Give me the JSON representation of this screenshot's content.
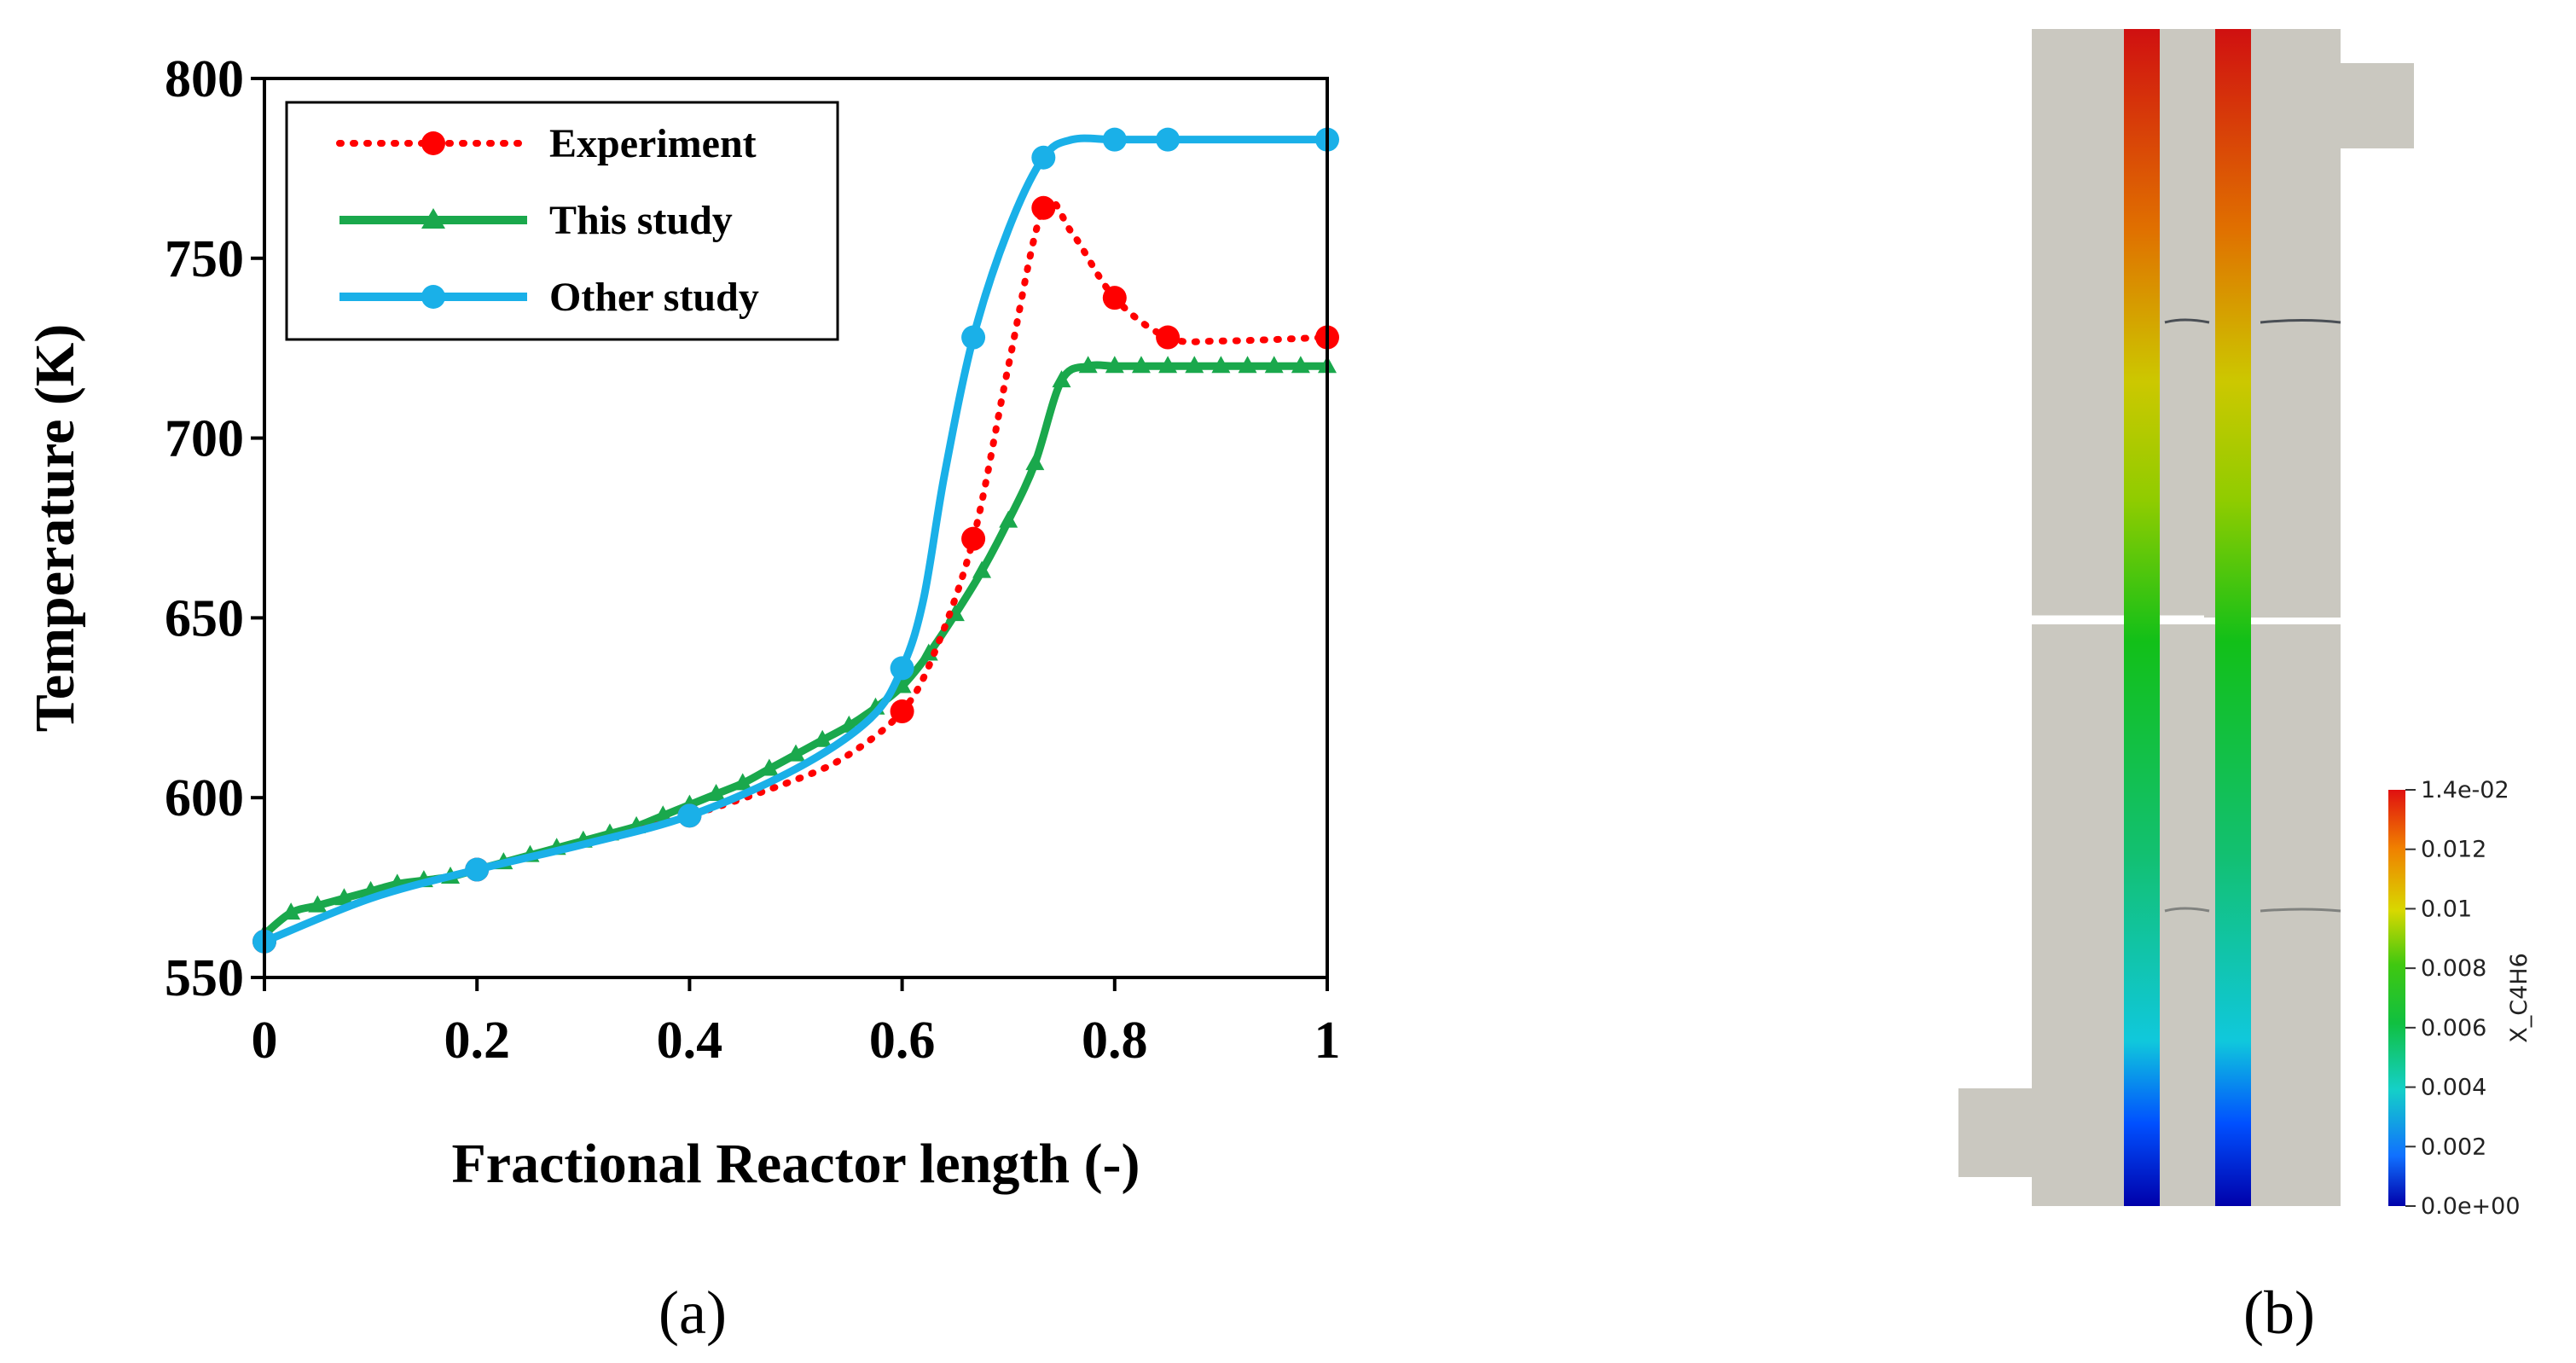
{
  "chart_data": [
    {
      "type": "line",
      "panel_label": "(a)",
      "xlabel": "Fractional Reactor length (-)",
      "ylabel": "Temperature (K)",
      "xlim": [
        0,
        1
      ],
      "ylim": [
        550,
        800
      ],
      "xticks": [
        "0",
        "0.2",
        "0.4",
        "0.6",
        "0.8",
        "1"
      ],
      "xtick_values": [
        0,
        0.2,
        0.4,
        0.6,
        0.8,
        1
      ],
      "yticks": [
        "550",
        "600",
        "650",
        "700",
        "750",
        "800"
      ],
      "ytick_values": [
        550,
        600,
        650,
        700,
        750,
        800
      ],
      "legend_position": "top-left",
      "series": [
        {
          "name": "Experiment",
          "color": "#ff0000",
          "style": "dotted",
          "marker": "circle",
          "x": [
            0,
            0.2,
            0.4,
            0.6,
            0.667,
            0.733,
            0.8,
            0.85,
            1.0
          ],
          "y": [
            560,
            580,
            595,
            624,
            672,
            764,
            739,
            728,
            728
          ],
          "curve": [
            [
              0,
              560
            ],
            [
              0.1,
              572
            ],
            [
              0.2,
              580
            ],
            [
              0.3,
              587
            ],
            [
              0.4,
              595
            ],
            [
              0.5,
              605
            ],
            [
              0.55,
              612
            ],
            [
              0.6,
              624
            ],
            [
              0.63,
              640
            ],
            [
              0.667,
              672
            ],
            [
              0.7,
              720
            ],
            [
              0.733,
              764
            ],
            [
              0.76,
              757
            ],
            [
              0.8,
              739
            ],
            [
              0.85,
              728
            ],
            [
              0.9,
              727
            ],
            [
              1.0,
              728
            ]
          ]
        },
        {
          "name": "This study",
          "color": "#1aa84c",
          "style": "solid",
          "marker": "triangle",
          "x": [
            0,
            0.025,
            0.05,
            0.075,
            0.1,
            0.125,
            0.15,
            0.175,
            0.2,
            0.225,
            0.25,
            0.275,
            0.3,
            0.325,
            0.35,
            0.375,
            0.4,
            0.425,
            0.45,
            0.475,
            0.5,
            0.525,
            0.55,
            0.575,
            0.6,
            0.625,
            0.65,
            0.675,
            0.7,
            0.725,
            0.75,
            0.775,
            0.8,
            0.825,
            0.85,
            0.875,
            0.9,
            0.925,
            0.95,
            0.975,
            1.0
          ],
          "y": [
            562,
            568,
            570,
            572,
            574,
            576,
            577,
            578,
            580,
            582,
            584,
            586,
            588,
            590,
            592,
            595,
            598,
            601,
            604,
            608,
            612,
            616,
            620,
            625,
            631,
            640,
            651,
            663,
            677,
            693,
            716,
            720,
            720,
            720,
            720,
            720,
            720,
            720,
            720,
            720,
            720
          ]
        },
        {
          "name": "Other study",
          "color": "#1ab0e8",
          "style": "solid",
          "marker": "circle",
          "x": [
            0,
            0.2,
            0.4,
            0.6,
            0.667,
            0.733,
            0.8,
            0.85,
            1.0
          ],
          "y": [
            560,
            580,
            595,
            636,
            728,
            778,
            783,
            783,
            783
          ],
          "curve": [
            [
              0,
              560
            ],
            [
              0.1,
              572
            ],
            [
              0.2,
              580
            ],
            [
              0.3,
              587
            ],
            [
              0.4,
              595
            ],
            [
              0.5,
              608
            ],
            [
              0.57,
              622
            ],
            [
              0.6,
              636
            ],
            [
              0.62,
              655
            ],
            [
              0.64,
              690
            ],
            [
              0.667,
              728
            ],
            [
              0.7,
              758
            ],
            [
              0.733,
              778
            ],
            [
              0.76,
              783
            ],
            [
              0.8,
              783
            ],
            [
              0.85,
              783
            ],
            [
              1.0,
              783
            ]
          ]
        }
      ]
    },
    {
      "type": "heatmap",
      "panel_label": "(b)",
      "colorbar_title": "X_C4H6",
      "colorbar_range": [
        0.0,
        0.014
      ],
      "colorbar_ticks": [
        "0.0e+00",
        "0.002",
        "0.004",
        "0.006",
        "0.008",
        "0.01",
        "0.012",
        "1.4e-02"
      ],
      "colorbar_tick_values": [
        0,
        0.002,
        0.004,
        0.006,
        0.008,
        0.01,
        0.012,
        0.014
      ],
      "colormap_stops": [
        "#0000aa",
        "#0f7fff",
        "#14c8c8",
        "#10c040",
        "#20c820",
        "#c8d000",
        "#f08000",
        "#e01010"
      ],
      "body_color": "#cac8c0",
      "channel_profile": "X_C4H6 increases linearly from 0 at bottom inlet to 1.4e-02 at top outlet in both channels"
    }
  ]
}
